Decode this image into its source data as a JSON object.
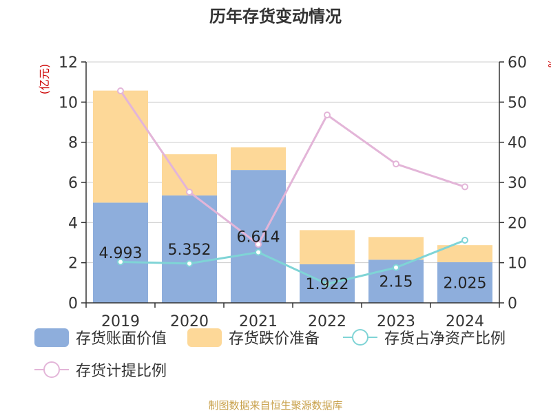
{
  "chart_data": {
    "type": "bar",
    "title": "历年存货变动情况",
    "categories": [
      "2019",
      "2020",
      "2021",
      "2022",
      "2023",
      "2024"
    ],
    "left_axis": {
      "unit_label": "(亿元)",
      "ylim": [
        0,
        12
      ],
      "ticks": [
        "0",
        "2",
        "4",
        "6",
        "8",
        "10",
        "12"
      ]
    },
    "right_axis": {
      "unit_label": "%",
      "ylim": [
        0,
        60
      ],
      "ticks": [
        "0",
        "10",
        "20",
        "30",
        "40",
        "50",
        "60"
      ]
    },
    "series": [
      {
        "name": "存货账面价值",
        "kind": "bar",
        "stack": "inventory",
        "axis": "left",
        "color": "#8eaedc",
        "values": [
          4.993,
          5.352,
          6.614,
          1.922,
          2.15,
          2.025
        ],
        "labels": [
          "4.993",
          "5.352",
          "6.614",
          "1.922",
          "2.15",
          "2.025"
        ]
      },
      {
        "name": "存货跌价准备",
        "kind": "bar",
        "stack": "inventory",
        "axis": "left",
        "color": "#fdd898",
        "values": [
          5.58,
          2.05,
          1.13,
          1.7,
          1.13,
          0.85
        ]
      },
      {
        "name": "存货占净资产比例",
        "kind": "line",
        "axis": "right",
        "color": "#7fd4d6",
        "values": [
          10.2,
          9.8,
          12.6,
          4.7,
          8.8,
          15.6
        ]
      },
      {
        "name": "存货计提比例",
        "kind": "line",
        "axis": "right",
        "color": "#e3b5d8",
        "values": [
          52.8,
          27.6,
          14.6,
          46.8,
          34.6,
          28.9
        ]
      }
    ],
    "grid": true,
    "legend_placement": "bottom"
  },
  "footer": {
    "source": "制图数据来自恒生聚源数据库"
  },
  "colors": {
    "axis": "#333333",
    "grid": "#cccccc",
    "unit_label": "#cc0000",
    "footer": "#c8a04a",
    "title": "#333333"
  }
}
